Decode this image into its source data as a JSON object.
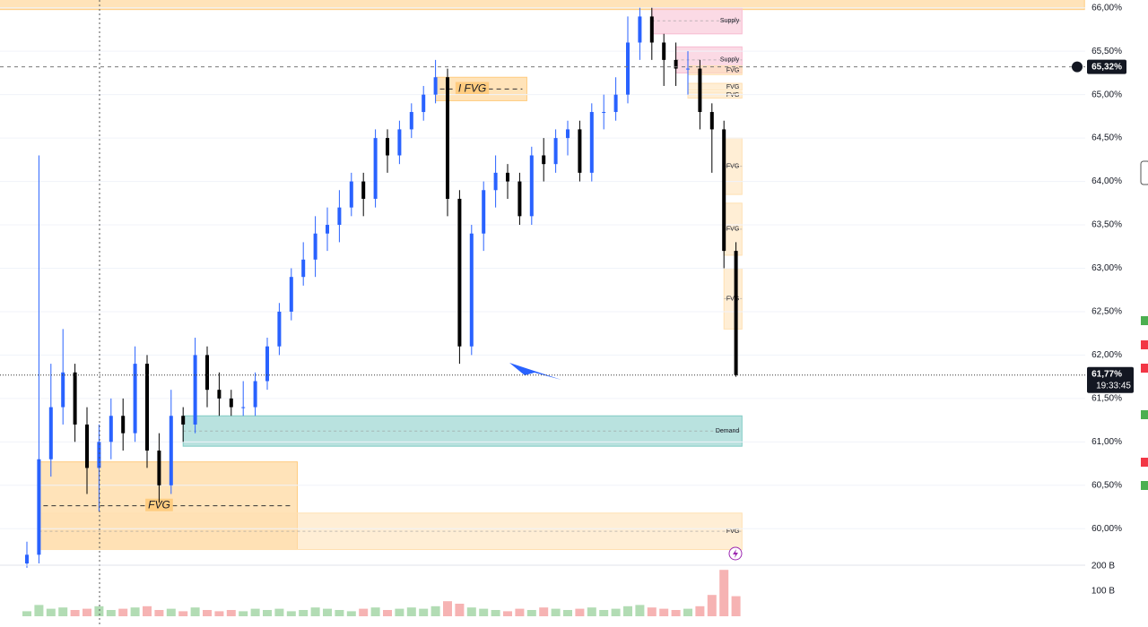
{
  "chart_data": {
    "type": "candlestick",
    "ylim": [
      59.59,
      66.09
    ],
    "yticks": [
      {
        "value": 60,
        "label": "60,00%"
      },
      {
        "value": 60.5,
        "label": "60,50%"
      },
      {
        "value": 61,
        "label": "61,00%"
      },
      {
        "value": 61.5,
        "label": "61,50%"
      },
      {
        "value": 62,
        "label": "62,00%"
      },
      {
        "value": 62.5,
        "label": "62,50%"
      },
      {
        "value": 63,
        "label": "63,00%"
      },
      {
        "value": 63.5,
        "label": "63,50%"
      },
      {
        "value": 64,
        "label": "64,00%"
      },
      {
        "value": 64.5,
        "label": "64,50%"
      },
      {
        "value": 65,
        "label": "65,00%"
      },
      {
        "value": 65.5,
        "label": "65,50%"
      },
      {
        "value": 66,
        "label": "66,00%"
      }
    ],
    "grid": true,
    "up_color": "#2962ff",
    "down_color": "#000000",
    "ohlc": [
      [
        59.6,
        59.85,
        59.55,
        59.7
      ],
      [
        59.7,
        64.3,
        59.6,
        60.8
      ],
      [
        60.8,
        61.9,
        60.6,
        61.4
      ],
      [
        61.4,
        62.3,
        61.2,
        61.8
      ],
      [
        61.8,
        61.9,
        61.0,
        61.2
      ],
      [
        61.2,
        61.4,
        60.4,
        60.7
      ],
      [
        60.7,
        61.2,
        60.2,
        61.0
      ],
      [
        61.0,
        61.5,
        60.8,
        61.3
      ],
      [
        61.3,
        61.5,
        60.9,
        61.1
      ],
      [
        61.1,
        62.1,
        61.0,
        61.9
      ],
      [
        61.9,
        62.0,
        60.7,
        60.9
      ],
      [
        60.9,
        61.1,
        60.3,
        60.5
      ],
      [
        60.5,
        61.6,
        60.4,
        61.3
      ],
      [
        61.3,
        61.4,
        61.0,
        61.2
      ],
      [
        61.2,
        62.2,
        61.1,
        62.0
      ],
      [
        62.0,
        62.1,
        61.4,
        61.6
      ],
      [
        61.6,
        61.8,
        61.3,
        61.5
      ],
      [
        61.5,
        61.6,
        61.3,
        61.4
      ],
      [
        61.4,
        61.7,
        61.3,
        61.4
      ],
      [
        61.4,
        61.8,
        61.3,
        61.7
      ],
      [
        61.7,
        62.2,
        61.6,
        62.1
      ],
      [
        62.1,
        62.6,
        62.0,
        62.5
      ],
      [
        62.5,
        63.0,
        62.4,
        62.9
      ],
      [
        62.9,
        63.3,
        62.8,
        63.1
      ],
      [
        63.1,
        63.6,
        62.9,
        63.4
      ],
      [
        63.4,
        63.7,
        63.2,
        63.5
      ],
      [
        63.5,
        63.9,
        63.3,
        63.7
      ],
      [
        63.7,
        64.1,
        63.6,
        64.0
      ],
      [
        64.0,
        64.1,
        63.6,
        63.8
      ],
      [
        63.8,
        64.6,
        63.7,
        64.5
      ],
      [
        64.5,
        64.6,
        64.1,
        64.3
      ],
      [
        64.3,
        64.7,
        64.2,
        64.6
      ],
      [
        64.6,
        64.9,
        64.5,
        64.8
      ],
      [
        64.8,
        65.1,
        64.7,
        65.0
      ],
      [
        65.0,
        65.4,
        64.9,
        65.2
      ],
      [
        65.2,
        65.3,
        63.6,
        63.8
      ],
      [
        63.8,
        63.9,
        61.9,
        62.1
      ],
      [
        62.1,
        63.5,
        62.0,
        63.4
      ],
      [
        63.4,
        64.0,
        63.2,
        63.9
      ],
      [
        63.9,
        64.3,
        63.7,
        64.1
      ],
      [
        64.1,
        64.2,
        63.8,
        64.0
      ],
      [
        64.0,
        64.1,
        63.5,
        63.6
      ],
      [
        63.6,
        64.4,
        63.5,
        64.3
      ],
      [
        64.3,
        64.5,
        64.0,
        64.2
      ],
      [
        64.2,
        64.6,
        64.1,
        64.5
      ],
      [
        64.5,
        64.7,
        64.3,
        64.6
      ],
      [
        64.6,
        64.7,
        64.0,
        64.1
      ],
      [
        64.1,
        64.9,
        64.0,
        64.8
      ],
      [
        64.8,
        65.0,
        64.6,
        64.8
      ],
      [
        64.8,
        65.2,
        64.7,
        65.0
      ],
      [
        65.0,
        65.9,
        64.9,
        65.6
      ],
      [
        65.6,
        66.0,
        65.4,
        65.9
      ],
      [
        65.9,
        66.0,
        65.4,
        65.6
      ],
      [
        65.6,
        65.7,
        65.1,
        65.4
      ],
      [
        65.4,
        65.6,
        65.1,
        65.3
      ],
      [
        65.3,
        65.5,
        65.0,
        65.3
      ],
      [
        65.3,
        65.4,
        64.6,
        64.8
      ],
      [
        64.8,
        64.9,
        64.1,
        64.6
      ],
      [
        64.6,
        64.7,
        63.0,
        63.2
      ],
      [
        63.2,
        63.3,
        61.75,
        61.77
      ]
    ],
    "volume": [
      20,
      45,
      30,
      35,
      25,
      30,
      40,
      25,
      30,
      35,
      40,
      25,
      30,
      20,
      35,
      25,
      20,
      25,
      20,
      30,
      25,
      30,
      20,
      25,
      35,
      30,
      25,
      20,
      30,
      35,
      25,
      30,
      35,
      30,
      40,
      60,
      50,
      35,
      30,
      25,
      20,
      30,
      25,
      35,
      30,
      25,
      30,
      35,
      25,
      30,
      40,
      45,
      35,
      30,
      25,
      30,
      40,
      85,
      185,
      80
    ],
    "vlim": [
      0,
      200
    ],
    "vticks": [
      {
        "value": 100,
        "label": "100 B"
      },
      {
        "value": 200,
        "label": "200 B"
      }
    ],
    "zones": [
      {
        "from": -3,
        "to": 88,
        "low": 65.98,
        "high": 66.12,
        "color": "#ffcc80"
      },
      {
        "from": 52,
        "to": 59.5,
        "low": 65.7,
        "high": 66.0,
        "color": "#f8bbd0",
        "label": "Supply"
      },
      {
        "from": 54,
        "to": 59.5,
        "low": 65.25,
        "high": 65.55,
        "color": "#f8bbd0",
        "label": "Supply"
      },
      {
        "from": 55,
        "to": 59.5,
        "low": 65.23,
        "high": 65.33,
        "color": "#ffe0b2",
        "label": "FVG"
      },
      {
        "from": 55,
        "to": 59.5,
        "low": 65.05,
        "high": 65.13,
        "color": "#ffe0b2",
        "label": "FVG"
      },
      {
        "from": 55,
        "to": 59.5,
        "low": 64.96,
        "high": 65.03,
        "color": "#ffe0b2",
        "label": "FVG"
      },
      {
        "from": 34,
        "to": 41.6,
        "low": 64.93,
        "high": 65.2,
        "color": "#ffcc80",
        "label": "I FVG",
        "style": "italic"
      },
      {
        "from": 58,
        "to": 59.5,
        "low": 63.85,
        "high": 64.5,
        "color": "#ffe0b2",
        "label": "FVG"
      },
      {
        "from": 58,
        "to": 59.5,
        "low": 63.15,
        "high": 63.75,
        "color": "#ffe0b2",
        "label": "FVG"
      },
      {
        "from": 58,
        "to": 59.5,
        "low": 62.3,
        "high": 63.0,
        "color": "#ffe0b2",
        "label": "FVG"
      },
      {
        "from": 13,
        "to": 59.5,
        "low": 60.95,
        "high": 61.3,
        "color": "#80cbc4",
        "label": "Demand"
      },
      {
        "from": 1,
        "to": 22.5,
        "low": 59.76,
        "high": 60.77,
        "color": "#ffcc80",
        "label": "FVG",
        "style": "italic"
      },
      {
        "from": 1,
        "to": 59.5,
        "low": 59.76,
        "high": 60.18,
        "color": "#ffe0b2",
        "label": "FVG"
      }
    ],
    "marker_price": 65.32,
    "marker_label": "65,32%",
    "last_price": 61.77,
    "last_label": "61,77%",
    "countdown": "19:33:45"
  }
}
